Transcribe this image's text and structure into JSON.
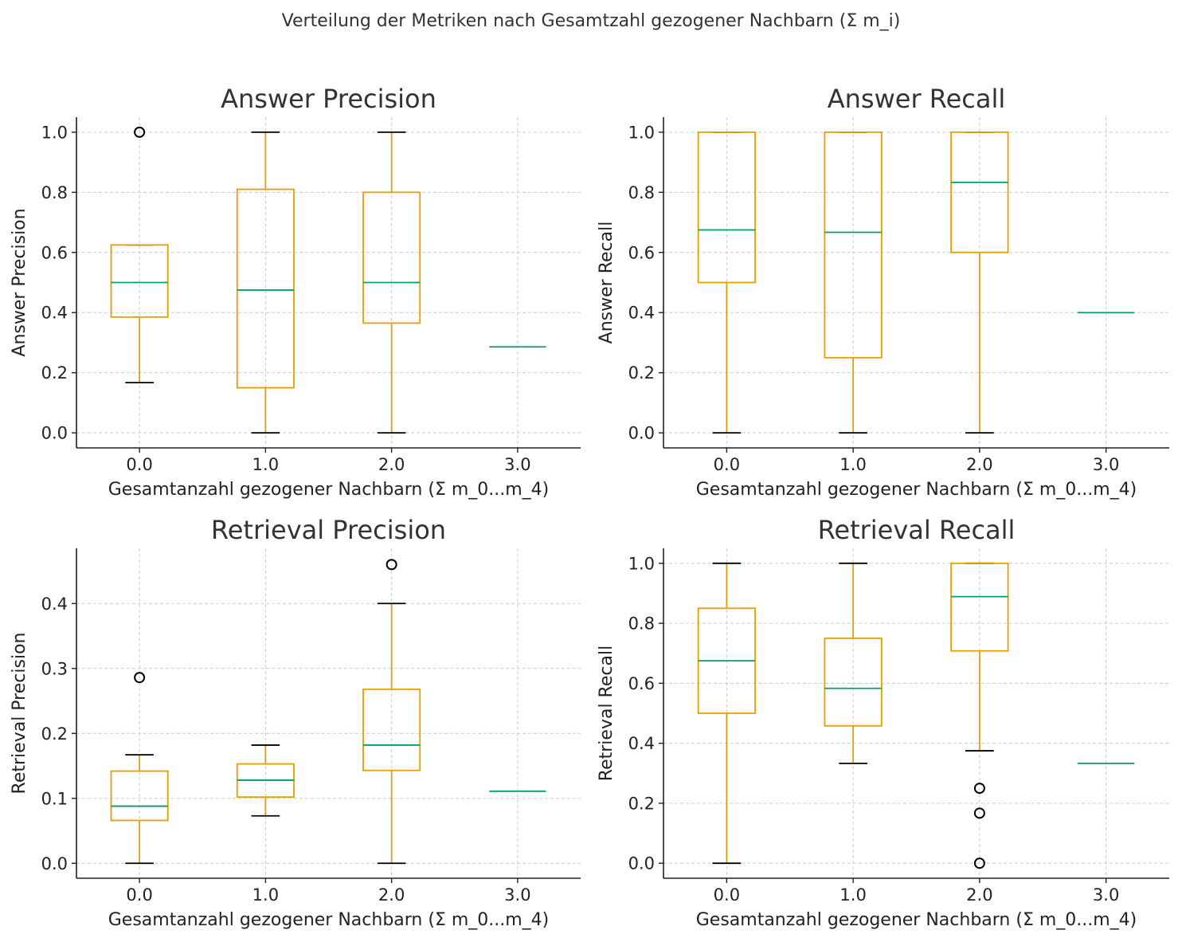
{
  "figure": {
    "suptitle": "Verteilung der Metriken nach Gesamtzahl gezogener Nachbarn (Σ m_i)"
  },
  "colors": {
    "box": "#E69F00",
    "median": "#009E73",
    "cap": "#000000",
    "flier": "#000000"
  },
  "chart_data": [
    {
      "type": "box",
      "title": "Answer Precision",
      "xlabel": "Gesamtanzahl gezogener Nachbarn (Σ m_0...m_4)",
      "ylabel": "Answer Precision",
      "categories": [
        "0.0",
        "1.0",
        "2.0",
        "3.0"
      ],
      "ylim": [
        -0.05,
        1.05
      ],
      "yticks": [
        0.0,
        0.2,
        0.4,
        0.6,
        0.8,
        1.0
      ],
      "ytick_labels": [
        "0.0",
        "0.2",
        "0.4",
        "0.6",
        "0.8",
        "1.0"
      ],
      "grid": true,
      "boxes": [
        {
          "category": "0.0",
          "whislo": 0.167,
          "q1": 0.385,
          "med": 0.5,
          "q3": 0.625,
          "whishi": 0.625,
          "fliers": [
            1.0
          ]
        },
        {
          "category": "1.0",
          "whislo": 0.0,
          "q1": 0.15,
          "med": 0.475,
          "q3": 0.81,
          "whishi": 1.0,
          "fliers": []
        },
        {
          "category": "2.0",
          "whislo": 0.0,
          "q1": 0.365,
          "med": 0.5,
          "q3": 0.8,
          "whishi": 1.0,
          "fliers": []
        },
        {
          "category": "3.0",
          "whislo": 0.286,
          "q1": 0.286,
          "med": 0.286,
          "q3": 0.286,
          "whishi": 0.286,
          "fliers": []
        }
      ]
    },
    {
      "type": "box",
      "title": "Answer Recall",
      "xlabel": "Gesamtanzahl gezogener Nachbarn (Σ m_0...m_4)",
      "ylabel": "Answer Recall",
      "categories": [
        "0.0",
        "1.0",
        "2.0",
        "3.0"
      ],
      "ylim": [
        -0.05,
        1.05
      ],
      "yticks": [
        0.0,
        0.2,
        0.4,
        0.6,
        0.8,
        1.0
      ],
      "ytick_labels": [
        "0.0",
        "0.2",
        "0.4",
        "0.6",
        "0.8",
        "1.0"
      ],
      "grid": true,
      "boxes": [
        {
          "category": "0.0",
          "whislo": 0.0,
          "q1": 0.5,
          "med": 0.675,
          "q3": 1.0,
          "whishi": 1.0,
          "fliers": []
        },
        {
          "category": "1.0",
          "whislo": 0.0,
          "q1": 0.25,
          "med": 0.667,
          "q3": 1.0,
          "whishi": 1.0,
          "fliers": []
        },
        {
          "category": "2.0",
          "whislo": 0.0,
          "q1": 0.6,
          "med": 0.833,
          "q3": 1.0,
          "whishi": 1.0,
          "fliers": []
        },
        {
          "category": "3.0",
          "whislo": 0.4,
          "q1": 0.4,
          "med": 0.4,
          "q3": 0.4,
          "whishi": 0.4,
          "fliers": []
        }
      ]
    },
    {
      "type": "box",
      "title": "Retrieval Precision",
      "xlabel": "Gesamtanzahl gezogener Nachbarn (Σ m_0...m_4)",
      "ylabel": "Retrieval Precision",
      "categories": [
        "0.0",
        "1.0",
        "2.0",
        "3.0"
      ],
      "ylim": [
        -0.023,
        0.485
      ],
      "yticks": [
        0.0,
        0.1,
        0.2,
        0.3,
        0.4
      ],
      "ytick_labels": [
        "0.0",
        "0.1",
        "0.2",
        "0.3",
        "0.4"
      ],
      "grid": true,
      "boxes": [
        {
          "category": "0.0",
          "whislo": 0.0,
          "q1": 0.066,
          "med": 0.088,
          "q3": 0.142,
          "whishi": 0.167,
          "fliers": [
            0.286
          ]
        },
        {
          "category": "1.0",
          "whislo": 0.073,
          "q1": 0.102,
          "med": 0.128,
          "q3": 0.153,
          "whishi": 0.182,
          "fliers": []
        },
        {
          "category": "2.0",
          "whislo": 0.0,
          "q1": 0.143,
          "med": 0.182,
          "q3": 0.268,
          "whishi": 0.4,
          "fliers": [
            0.46
          ]
        },
        {
          "category": "3.0",
          "whislo": 0.111,
          "q1": 0.111,
          "med": 0.111,
          "q3": 0.111,
          "whishi": 0.111,
          "fliers": []
        }
      ]
    },
    {
      "type": "box",
      "title": "Retrieval Recall",
      "xlabel": "Gesamtanzahl gezogener Nachbarn (Σ m_0...m_4)",
      "ylabel": "Retrieval Recall",
      "categories": [
        "0.0",
        "1.0",
        "2.0",
        "3.0"
      ],
      "ylim": [
        -0.05,
        1.05
      ],
      "yticks": [
        0.0,
        0.2,
        0.4,
        0.6,
        0.8,
        1.0
      ],
      "ytick_labels": [
        "0.0",
        "0.2",
        "0.4",
        "0.6",
        "0.8",
        "1.0"
      ],
      "grid": true,
      "boxes": [
        {
          "category": "0.0",
          "whislo": 0.0,
          "q1": 0.5,
          "med": 0.675,
          "q3": 0.85,
          "whishi": 1.0,
          "fliers": []
        },
        {
          "category": "1.0",
          "whislo": 0.333,
          "q1": 0.458,
          "med": 0.583,
          "q3": 0.75,
          "whishi": 1.0,
          "fliers": []
        },
        {
          "category": "2.0",
          "whislo": 0.375,
          "q1": 0.708,
          "med": 0.889,
          "q3": 1.0,
          "whishi": 1.0,
          "fliers": [
            0.25,
            0.167,
            0.0
          ]
        },
        {
          "category": "3.0",
          "whislo": 0.333,
          "q1": 0.333,
          "med": 0.333,
          "q3": 0.333,
          "whishi": 0.333,
          "fliers": []
        }
      ]
    }
  ]
}
